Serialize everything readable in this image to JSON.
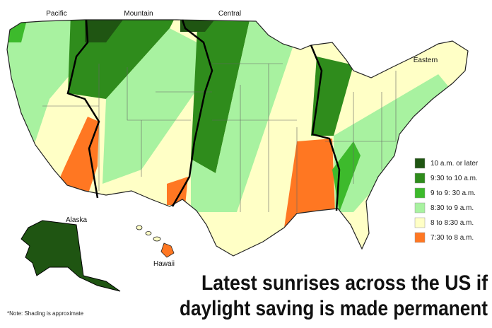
{
  "time_zones": [
    "Pacific",
    "Mountain",
    "Central",
    "Eastern"
  ],
  "legend": [
    {
      "label": "10 a.m. or later",
      "color": "#1f5512"
    },
    {
      "label": "9:30 to 10 a.m.",
      "color": "#2f8c1c"
    },
    {
      "label": "9 to 9: 30 a.m.",
      "color": "#3dba2c"
    },
    {
      "label": "8:30 to 9 a.m.",
      "color": "#a8f2a0"
    },
    {
      "label": "8 to 8:30 a.m.",
      "color": "#ffffc6"
    },
    {
      "label": "7:30 to 8 a.m.",
      "color": "#ff7722"
    }
  ],
  "regions": [
    "Alaska",
    "Hawaii"
  ],
  "title": [
    "Latest sunrises across the US if",
    "daylight saving is made permanent"
  ],
  "note": "*Note: Shading is approximate"
}
